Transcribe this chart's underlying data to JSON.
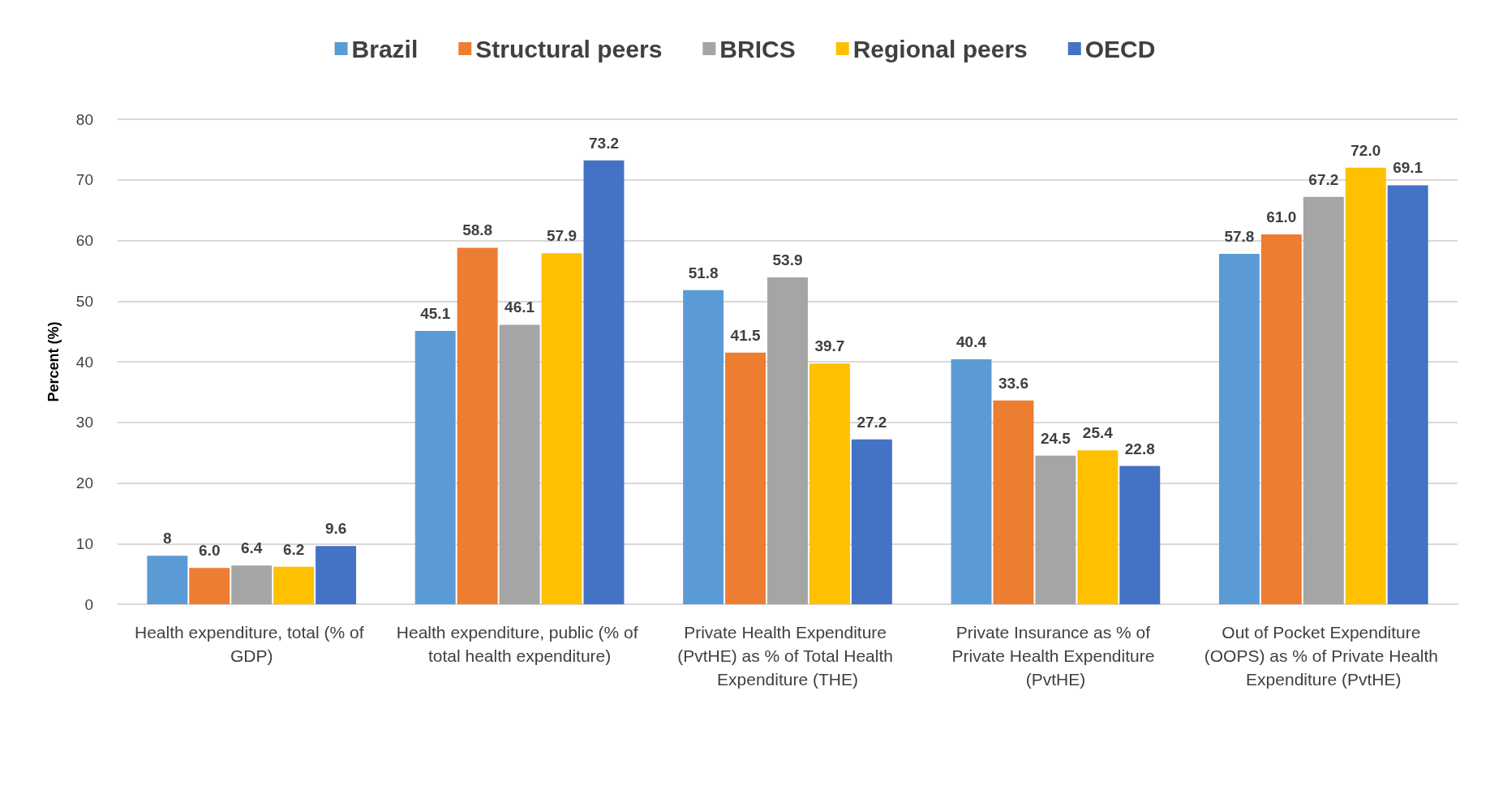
{
  "chart_data": {
    "type": "bar",
    "ylabel": "Percent (%)",
    "categories": [
      "Health expenditure, total (% of GDP)",
      "Health expenditure, public (% of total health expenditure)",
      "Private Health Expenditure (PvtHE) as % of Total Health Expenditure (THE)",
      "Private Insurance as % of Private Health Expenditure (PvtHE)",
      "Out of Pocket Expenditure (OOPS) as % of Private Health Expenditure (PvtHE)"
    ],
    "series": [
      {
        "name": "Brazil",
        "color": "#5b9bd5",
        "values": [
          8,
          45.1,
          51.8,
          40.4,
          57.8
        ],
        "value_labels": [
          "8",
          "45.1",
          "51.8",
          "40.4",
          "57.8"
        ]
      },
      {
        "name": "Structural peers",
        "color": "#ed7d31",
        "values": [
          6.0,
          58.8,
          41.5,
          33.6,
          61.0
        ],
        "value_labels": [
          "6.0",
          "58.8",
          "41.5",
          "33.6",
          "61.0"
        ]
      },
      {
        "name": "BRICS",
        "color": "#a5a5a5",
        "values": [
          6.4,
          46.1,
          53.9,
          24.5,
          67.2
        ],
        "value_labels": [
          "6.4",
          "46.1",
          "53.9",
          "24.5",
          "67.2"
        ]
      },
      {
        "name": "Regional peers",
        "color": "#ffc000",
        "values": [
          6.2,
          57.9,
          39.7,
          25.4,
          72.0
        ],
        "value_labels": [
          "6.2",
          "57.9",
          "39.7",
          "25.4",
          "72.0"
        ]
      },
      {
        "name": "OECD",
        "color": "#4472c4",
        "values": [
          9.6,
          73.2,
          27.2,
          22.8,
          69.1
        ],
        "value_labels": [
          "9.6",
          "73.2",
          "27.2",
          "22.8",
          "69.1"
        ]
      }
    ],
    "ylim": [
      0,
      80
    ],
    "yticks": [
      0,
      10,
      20,
      30,
      40,
      50,
      60,
      70,
      80
    ],
    "grid": "y",
    "legend": "top"
  }
}
